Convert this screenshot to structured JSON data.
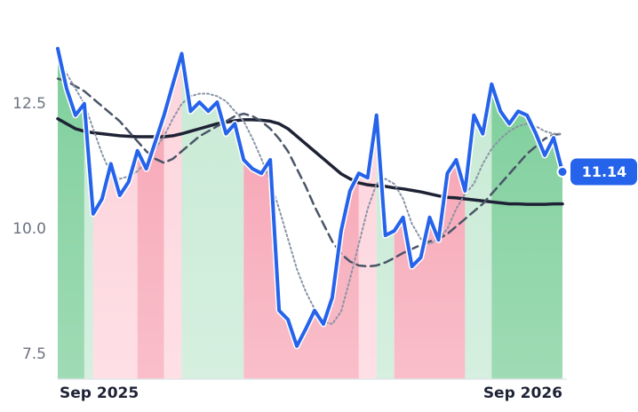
{
  "chart_data": {
    "type": "line",
    "categories": [
      "Sep 2025",
      null,
      null,
      null,
      null,
      null,
      null,
      null,
      null,
      null,
      null,
      null,
      null,
      null,
      null,
      null,
      null,
      null,
      null,
      null,
      null,
      null,
      null,
      null,
      null,
      null,
      null,
      null,
      null,
      null,
      null,
      null,
      null,
      null,
      null,
      null,
      null,
      null,
      null,
      null,
      null,
      null,
      null,
      null,
      null,
      null,
      null,
      null,
      null,
      null,
      null,
      null,
      null,
      null,
      null,
      null,
      null,
      "Sep 2026"
    ],
    "series": [
      {
        "color": "#1e2235",
        "style": "solid",
        "width": 3.5,
        "values": [
          12.2,
          12.1,
          12.0,
          11.95,
          11.92,
          11.9,
          11.88,
          11.86,
          11.85,
          11.84,
          11.84,
          11.84,
          11.84,
          11.86,
          11.9,
          11.95,
          12.0,
          12.05,
          12.1,
          12.13,
          12.16,
          12.18,
          12.18,
          12.17,
          12.15,
          12.1,
          12.0,
          11.85,
          11.7,
          11.55,
          11.4,
          11.25,
          11.1,
          11.0,
          10.92,
          10.88,
          10.86,
          10.85,
          10.82,
          10.8,
          10.77,
          10.74,
          10.7,
          10.66,
          10.63,
          10.62,
          10.6,
          10.58,
          10.56,
          10.54,
          10.52,
          10.5,
          10.5,
          10.49,
          10.49,
          10.49,
          10.5,
          10.5
        ]
      },
      {
        "color": "#4a5568",
        "style": "dashed",
        "width": 2.5,
        "values": [
          13.0,
          12.95,
          12.85,
          12.75,
          12.6,
          12.45,
          12.3,
          12.15,
          11.95,
          11.75,
          11.55,
          11.4,
          11.32,
          11.4,
          11.55,
          11.7,
          11.85,
          11.95,
          12.05,
          12.15,
          12.25,
          12.3,
          12.25,
          12.15,
          12.0,
          11.8,
          11.55,
          11.2,
          10.85,
          10.45,
          10.1,
          9.75,
          9.5,
          9.35,
          9.27,
          9.25,
          9.27,
          9.33,
          9.42,
          9.52,
          9.6,
          9.68,
          9.75,
          9.8,
          9.9,
          10.05,
          10.2,
          10.35,
          10.5,
          10.7,
          10.9,
          11.1,
          11.3,
          11.5,
          11.65,
          11.8,
          11.88,
          11.9
        ]
      },
      {
        "color": "#8a94a6",
        "style": "dotted",
        "width": 2,
        "values": [
          13.4,
          13.1,
          12.8,
          12.5,
          12.0,
          11.5,
          11.1,
          11.0,
          11.05,
          11.15,
          11.35,
          11.6,
          11.85,
          12.2,
          12.5,
          12.65,
          12.7,
          12.7,
          12.65,
          12.55,
          12.35,
          12.15,
          11.8,
          11.4,
          10.95,
          10.4,
          9.8,
          9.2,
          8.75,
          8.4,
          8.15,
          8.1,
          8.35,
          9.0,
          9.7,
          10.4,
          10.9,
          11.0,
          10.9,
          10.6,
          10.1,
          9.8,
          9.7,
          9.8,
          10.0,
          10.4,
          10.7,
          10.9,
          11.3,
          11.6,
          11.8,
          11.95,
          12.05,
          12.1,
          12.05,
          11.95,
          11.9,
          11.9
        ]
      },
      {
        "color": "#2563eb",
        "style": "solid",
        "width": 4,
        "values": [
          13.6,
          12.8,
          12.27,
          12.5,
          10.3,
          10.6,
          11.3,
          10.67,
          10.94,
          11.56,
          11.2,
          11.73,
          12.27,
          12.89,
          13.5,
          12.35,
          12.53,
          12.35,
          12.53,
          11.9,
          12.1,
          11.38,
          11.2,
          11.11,
          11.38,
          8.37,
          8.19,
          7.66,
          8.0,
          8.37,
          8.1,
          8.63,
          9.96,
          10.76,
          11.11,
          11.02,
          12.27,
          9.87,
          9.96,
          10.23,
          9.25,
          9.43,
          10.23,
          9.78,
          11.11,
          11.38,
          10.76,
          12.27,
          11.9,
          12.89,
          12.35,
          12.1,
          12.35,
          12.27,
          11.9,
          11.47,
          11.82,
          11.14
        ]
      }
    ],
    "regions": [
      {
        "from": 0,
        "to": 3,
        "color": "#7fcf9c"
      },
      {
        "from": 3,
        "to": 4,
        "color": "#c8ead5"
      },
      {
        "from": 4,
        "to": 9,
        "color": "#fdd5dd"
      },
      {
        "from": 9,
        "to": 12,
        "color": "#f7a9b8"
      },
      {
        "from": 12,
        "to": 14,
        "color": "#fdd5dd"
      },
      {
        "from": 14,
        "to": 21,
        "color": "#c8ead5"
      },
      {
        "from": 21,
        "to": 34,
        "color": "#f7a9b8"
      },
      {
        "from": 34,
        "to": 36,
        "color": "#fdd5dd"
      },
      {
        "from": 36,
        "to": 38,
        "color": "#c8ead5"
      },
      {
        "from": 38,
        "to": 46,
        "color": "#f7a9b8"
      },
      {
        "from": 46,
        "to": 49,
        "color": "#c8ead5"
      },
      {
        "from": 49,
        "to": 57,
        "color": "#7fcf9c"
      }
    ],
    "ylim": [
      7,
      14
    ],
    "yticks": [
      7.5,
      {
        "value": 10,
        "label": "10.0"
      },
      12.5
    ]
  }
}
